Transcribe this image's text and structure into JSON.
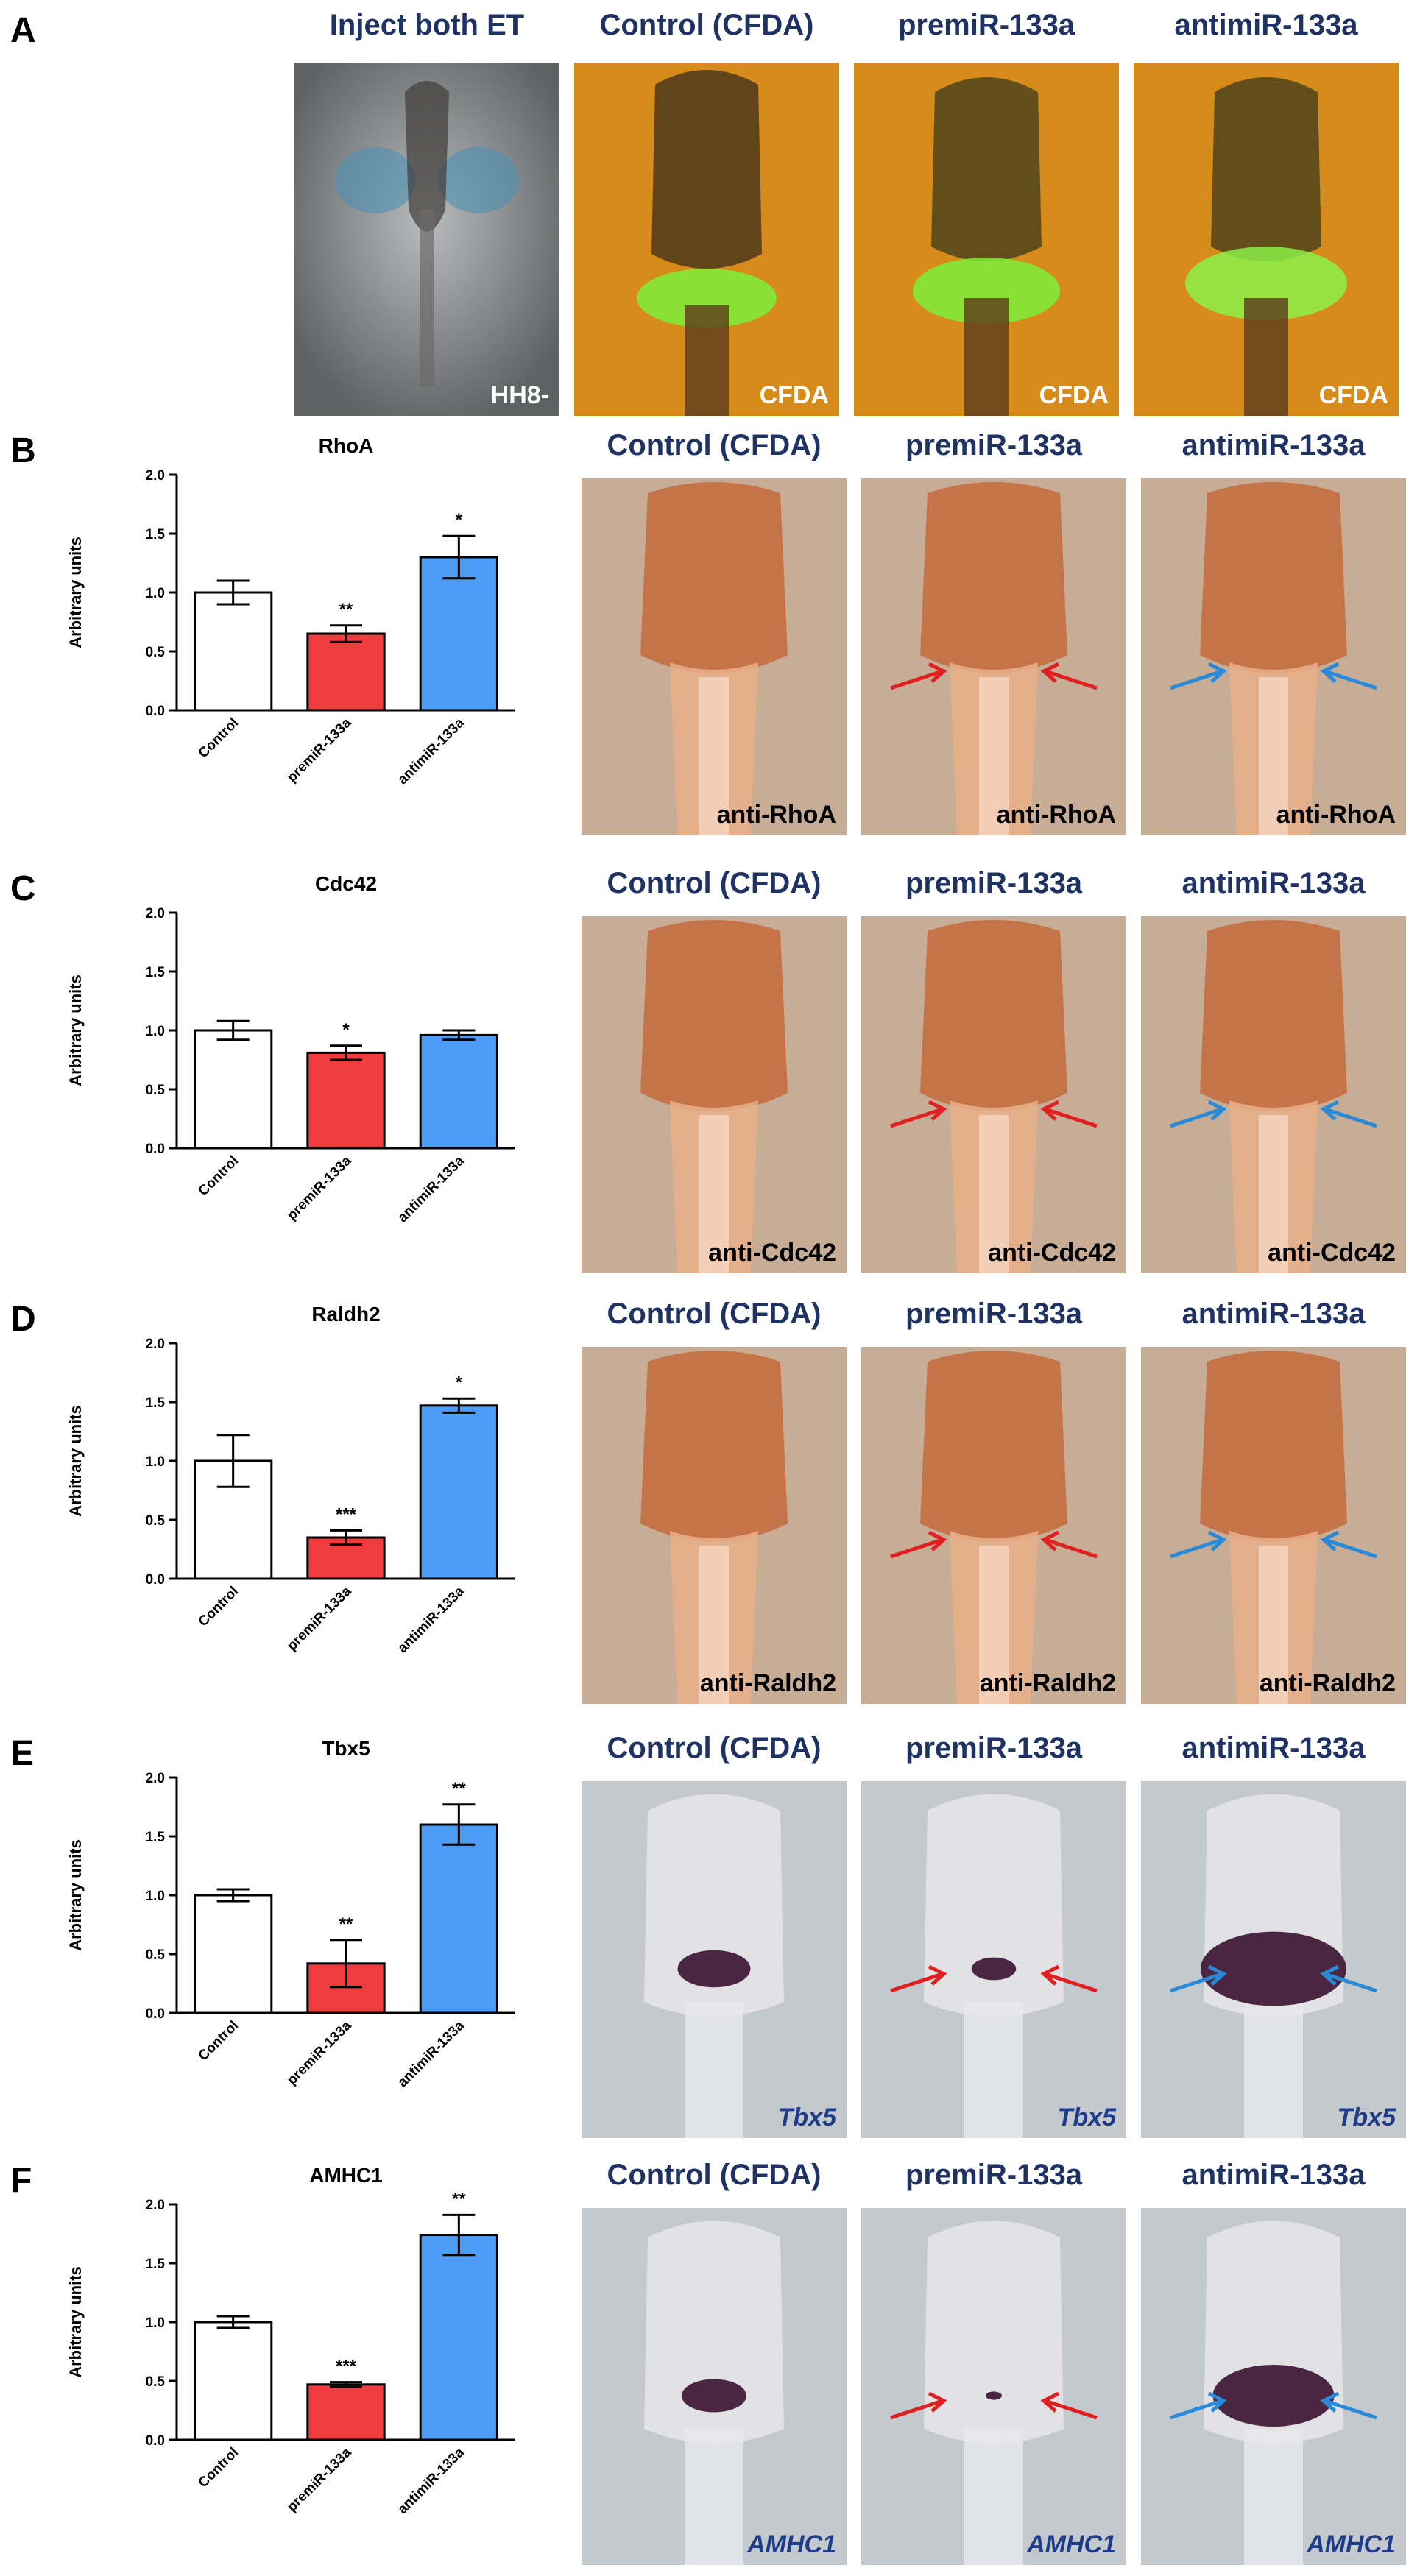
{
  "figure": {
    "panel_letters": [
      "A",
      "B",
      "C",
      "D",
      "E",
      "F"
    ],
    "panel_a": {
      "headers": [
        "Inject both ET",
        "Control (CFDA)",
        "premiR-133a",
        "antimiR-133a"
      ],
      "photo_labels": [
        "HH8-",
        "CFDA",
        "CFDA",
        "CFDA"
      ]
    },
    "rows": [
      {
        "headers": [
          "Control (CFDA)",
          "premiR-133a",
          "antimiR-133a"
        ],
        "photo_labels": [
          "anti-RhoA",
          "anti-RhoA",
          "anti-RhoA"
        ]
      },
      {
        "headers": [
          "Control (CFDA)",
          "premiR-133a",
          "antimiR-133a"
        ],
        "photo_labels": [
          "anti-Cdc42",
          "anti-Cdc42",
          "anti-Cdc42"
        ]
      },
      {
        "headers": [
          "Control (CFDA)",
          "premiR-133a",
          "antimiR-133a"
        ],
        "photo_labels": [
          "anti-Raldh2",
          "anti-Raldh2",
          "anti-Raldh2"
        ]
      },
      {
        "headers": [
          "Control (CFDA)",
          "premiR-133a",
          "antimiR-133a"
        ],
        "photo_labels": [
          "Tbx5",
          "Tbx5",
          "Tbx5"
        ]
      },
      {
        "headers": [
          "Control (CFDA)",
          "premiR-133a",
          "antimiR-133a"
        ],
        "photo_labels": [
          "AMHC1",
          "AMHC1",
          "AMHC1"
        ]
      }
    ]
  },
  "colors": {
    "control": "#ffffff",
    "premiR": "#f03c3c",
    "antimiR": "#4d9cf5",
    "header_blue": "#1f3264",
    "arrow_red": "#e02020",
    "arrow_blue": "#2a8ad8"
  },
  "chart_data": [
    {
      "type": "bar",
      "title": "RhoA",
      "ylabel": "Arbitrary units",
      "categories": [
        "Control",
        "premiR-133a",
        "antimiR-133a"
      ],
      "values": [
        1.0,
        0.65,
        1.3
      ],
      "errors": [
        0.1,
        0.07,
        0.18
      ],
      "significance": [
        "",
        "**",
        "*"
      ],
      "ylim": [
        0,
        2.0
      ],
      "yticks": [
        "0.0",
        "0.5",
        "1.0",
        "1.5",
        "2.0"
      ]
    },
    {
      "type": "bar",
      "title": "Cdc42",
      "ylabel": "Arbitrary units",
      "categories": [
        "Control",
        "premiR-133a",
        "antimiR-133a"
      ],
      "values": [
        1.0,
        0.81,
        0.96
      ],
      "errors": [
        0.08,
        0.06,
        0.04
      ],
      "significance": [
        "",
        "*",
        ""
      ],
      "ylim": [
        0,
        2.0
      ],
      "yticks": [
        "0.0",
        "0.5",
        "1.0",
        "1.5",
        "2.0"
      ]
    },
    {
      "type": "bar",
      "title": "Raldh2",
      "ylabel": "Arbitrary units",
      "categories": [
        "Control",
        "premiR-133a",
        "antimiR-133a"
      ],
      "values": [
        1.0,
        0.35,
        1.47
      ],
      "errors": [
        0.22,
        0.06,
        0.06
      ],
      "significance": [
        "",
        "***",
        "*"
      ],
      "ylim": [
        0,
        2.0
      ],
      "yticks": [
        "0.0",
        "0.5",
        "1.0",
        "1.5",
        "2.0"
      ]
    },
    {
      "type": "bar",
      "title": "Tbx5",
      "ylabel": "Arbitrary units",
      "categories": [
        "Control",
        "premiR-133a",
        "antimiR-133a"
      ],
      "values": [
        1.0,
        0.42,
        1.6
      ],
      "errors": [
        0.05,
        0.2,
        0.17
      ],
      "significance": [
        "",
        "**",
        "**"
      ],
      "ylim": [
        0,
        2.0
      ],
      "yticks": [
        "0.0",
        "0.5",
        "1.0",
        "1.5",
        "2.0"
      ]
    },
    {
      "type": "bar",
      "title": "AMHC1",
      "ylabel": "Arbitrary units",
      "categories": [
        "Control",
        "premiR-133a",
        "antimiR-133a"
      ],
      "values": [
        1.0,
        0.47,
        1.74
      ],
      "errors": [
        0.05,
        0.02,
        0.17
      ],
      "significance": [
        "",
        "***",
        "**"
      ],
      "ylim": [
        0,
        2.0
      ],
      "yticks": [
        "0.0",
        "0.5",
        "1.0",
        "1.5",
        "2.0"
      ]
    }
  ]
}
